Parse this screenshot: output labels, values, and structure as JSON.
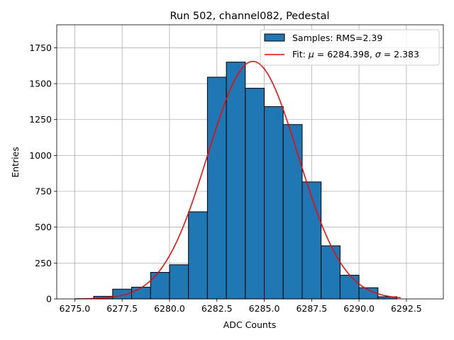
{
  "chart_data": {
    "type": "bar",
    "title": "Run 502, channel082, Pedestal",
    "xlabel": "ADC Counts",
    "ylabel": "Entries",
    "xlim": [
      6274.05,
      6294.45
    ],
    "ylim": [
      0,
      1910
    ],
    "xticks": [
      6275.0,
      6277.5,
      6280.0,
      6282.5,
      6285.0,
      6287.5,
      6290.0,
      6292.5
    ],
    "xtick_labels": [
      "6275.0",
      "6277.5",
      "6280.0",
      "6282.5",
      "6285.0",
      "6287.5",
      "6290.0",
      "6292.5"
    ],
    "yticks": [
      0,
      250,
      500,
      750,
      1000,
      1250,
      1500,
      1750
    ],
    "ytick_labels": [
      "0",
      "250",
      "500",
      "750",
      "1000",
      "1250",
      "1500",
      "1750"
    ],
    "grid": true,
    "legend_position": "top-right",
    "bin_edges": [
      6276,
      6277,
      6278,
      6279,
      6280,
      6281,
      6282,
      6283,
      6284,
      6285,
      6286,
      6287,
      6288,
      6289,
      6290,
      6291,
      6292
    ],
    "series": [
      {
        "name": "Samples: RMS=2.39",
        "kind": "histogram",
        "color": "#1f77b4",
        "values": [
          18,
          68,
          82,
          185,
          238,
          607,
          1545,
          1650,
          1468,
          1340,
          1215,
          815,
          370,
          165,
          78,
          15
        ]
      },
      {
        "name": "Fit: μ = 6284.398, σ = 2.383",
        "legend_prefix": "Fit: ",
        "legend_mu": "μ",
        "legend_mid": " = 6284.398, ",
        "legend_sigma": "σ",
        "legend_suffix": " = 2.383",
        "kind": "gaussian",
        "color": "#ff0000",
        "mu": 6284.398,
        "sigma": 2.383,
        "amplitude": 1655,
        "x_range": [
          6275.0,
          6292.2
        ]
      }
    ]
  }
}
